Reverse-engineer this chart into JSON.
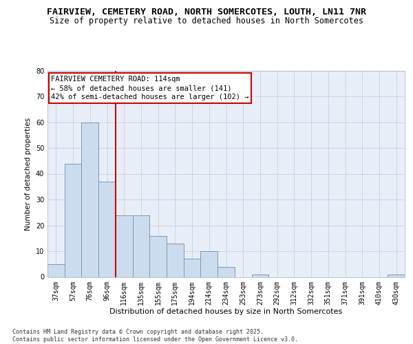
{
  "title1": "FAIRVIEW, CEMETERY ROAD, NORTH SOMERCOTES, LOUTH, LN11 7NR",
  "title2": "Size of property relative to detached houses in North Somercotes",
  "xlabel": "Distribution of detached houses by size in North Somercotes",
  "ylabel": "Number of detached properties",
  "categories": [
    "37sqm",
    "57sqm",
    "76sqm",
    "96sqm",
    "116sqm",
    "135sqm",
    "155sqm",
    "175sqm",
    "194sqm",
    "214sqm",
    "234sqm",
    "253sqm",
    "273sqm",
    "292sqm",
    "312sqm",
    "332sqm",
    "351sqm",
    "371sqm",
    "391sqm",
    "410sqm",
    "430sqm"
  ],
  "values": [
    5,
    44,
    60,
    37,
    24,
    24,
    16,
    13,
    7,
    10,
    4,
    0,
    1,
    0,
    0,
    0,
    0,
    0,
    0,
    0,
    1
  ],
  "bar_color": "#ccdcee",
  "bar_edge_color": "#7799bb",
  "ref_line_index": 4,
  "ref_line_label": "FAIRVIEW CEMETERY ROAD: 114sqm",
  "ref_line_note1": "← 58% of detached houses are smaller (141)",
  "ref_line_note2": "42% of semi-detached houses are larger (102) →",
  "ylim": [
    0,
    80
  ],
  "yticks": [
    0,
    10,
    20,
    30,
    40,
    50,
    60,
    70,
    80
  ],
  "annotation_box_facecolor": "#ffffff",
  "annotation_box_edgecolor": "#cc0000",
  "ref_line_color": "#cc0000",
  "grid_color": "#c8d0dc",
  "bg_color": "#e8eef8",
  "footer": "Contains HM Land Registry data © Crown copyright and database right 2025.\nContains public sector information licensed under the Open Government Licence v3.0.",
  "title_fontsize": 9.5,
  "subtitle_fontsize": 8.5,
  "xlabel_fontsize": 8,
  "ylabel_fontsize": 7.5,
  "tick_fontsize": 7,
  "ann_fontsize": 7.5
}
